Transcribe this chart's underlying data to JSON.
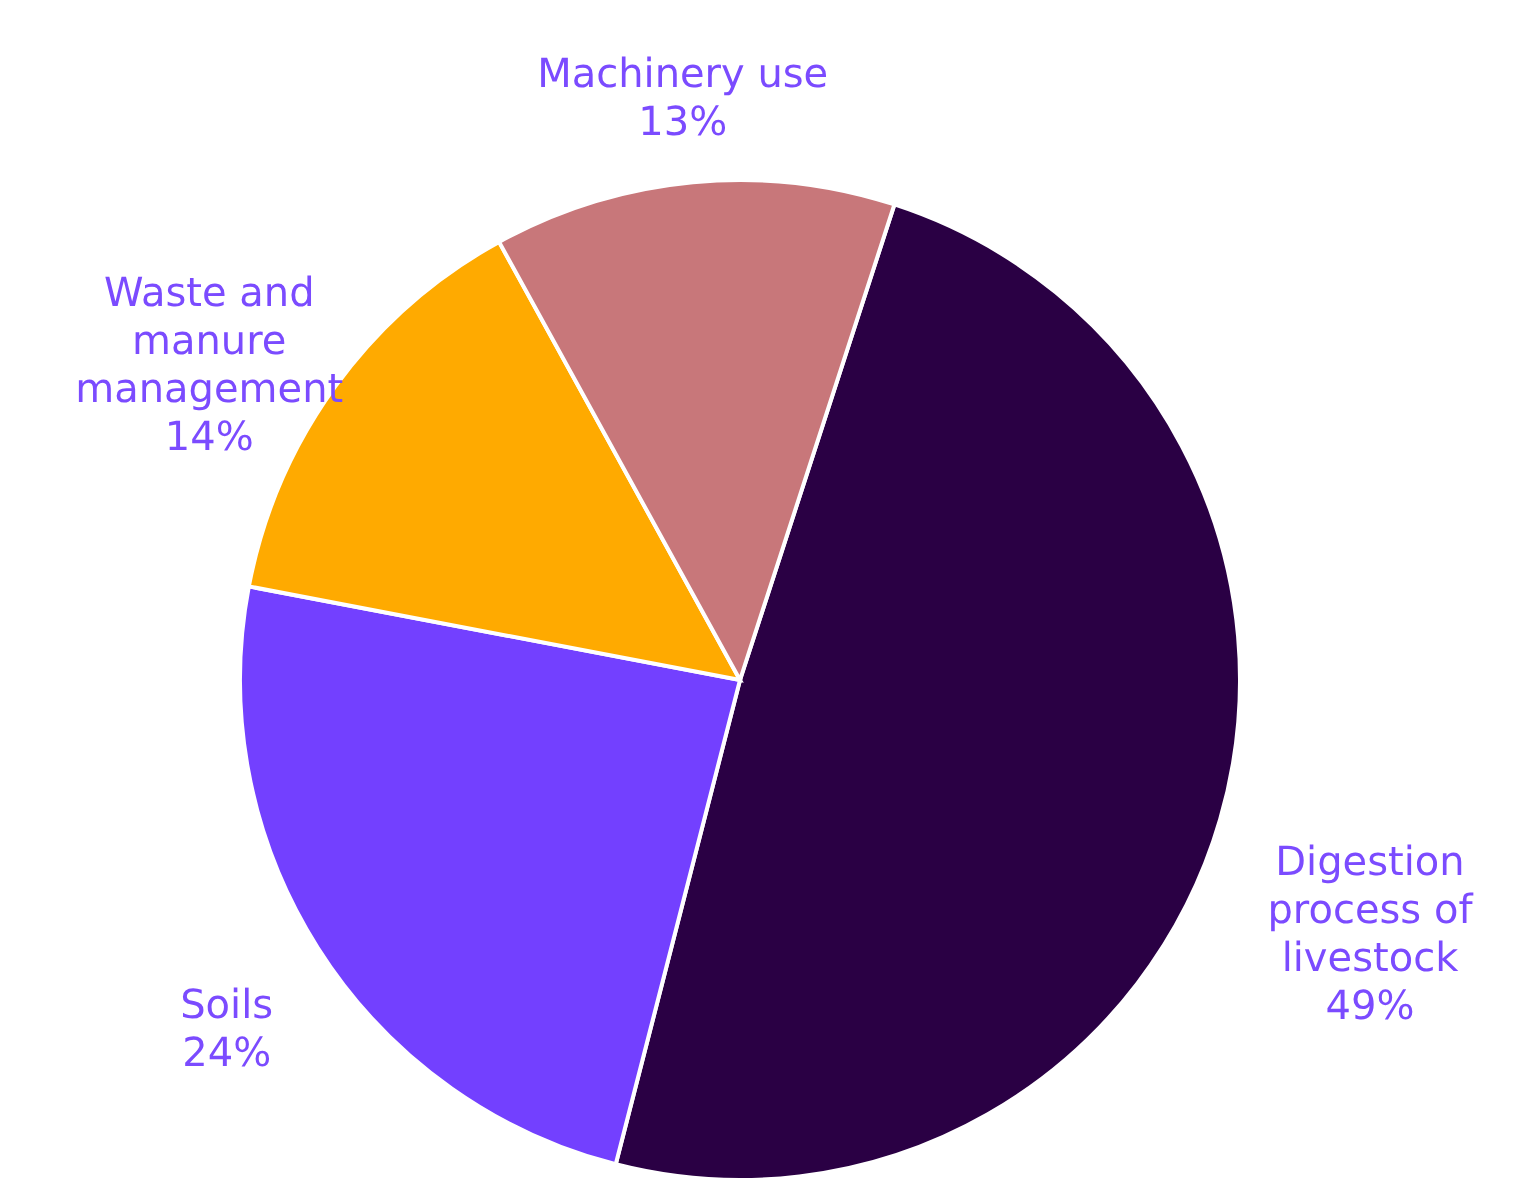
{
  "chart_data": {
    "type": "pie",
    "categories": [
      "Digestion process of livestock",
      "Soils",
      "Waste and manure management",
      "Machinery use"
    ],
    "values": [
      49,
      24,
      14,
      13
    ],
    "colors": [
      "#2a0044",
      "#7340ff",
      "#ffaa00",
      "#c8777a"
    ],
    "value_labels": [
      "49%",
      "24%",
      "14%",
      "13%"
    ]
  }
}
